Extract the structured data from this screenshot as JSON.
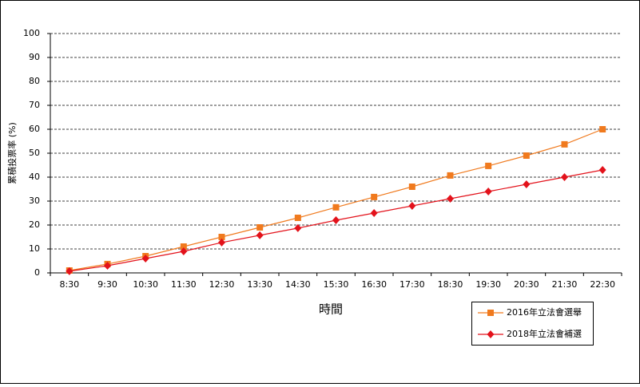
{
  "chart_data": {
    "type": "line",
    "x_label": "時間",
    "y_label": "累積投票率 (%)",
    "categories": [
      "8:30",
      "9:30",
      "10:30",
      "11:30",
      "12:30",
      "13:30",
      "14:30",
      "15:30",
      "16:30",
      "17:30",
      "18:30",
      "19:30",
      "20:30",
      "21:30",
      "22:30"
    ],
    "series": [
      {
        "name": "2016年立法會選舉",
        "color": "#f07a1e",
        "marker": "square",
        "values": [
          1,
          3.7,
          7,
          11,
          15,
          19,
          23,
          27.4,
          31.7,
          36,
          40.7,
          44.7,
          49,
          53.7,
          60
        ]
      },
      {
        "name": "2018年立法會補選",
        "color": "#e3121b",
        "marker": "diamond",
        "values": [
          0.7,
          3,
          6,
          9,
          12.7,
          15.7,
          18.7,
          22,
          25,
          28,
          31,
          34,
          37,
          40,
          43
        ]
      }
    ],
    "ylim": [
      0,
      100
    ],
    "yticks": [
      0,
      10,
      20,
      30,
      40,
      50,
      60,
      70,
      80,
      90,
      100
    ],
    "grid": true
  }
}
